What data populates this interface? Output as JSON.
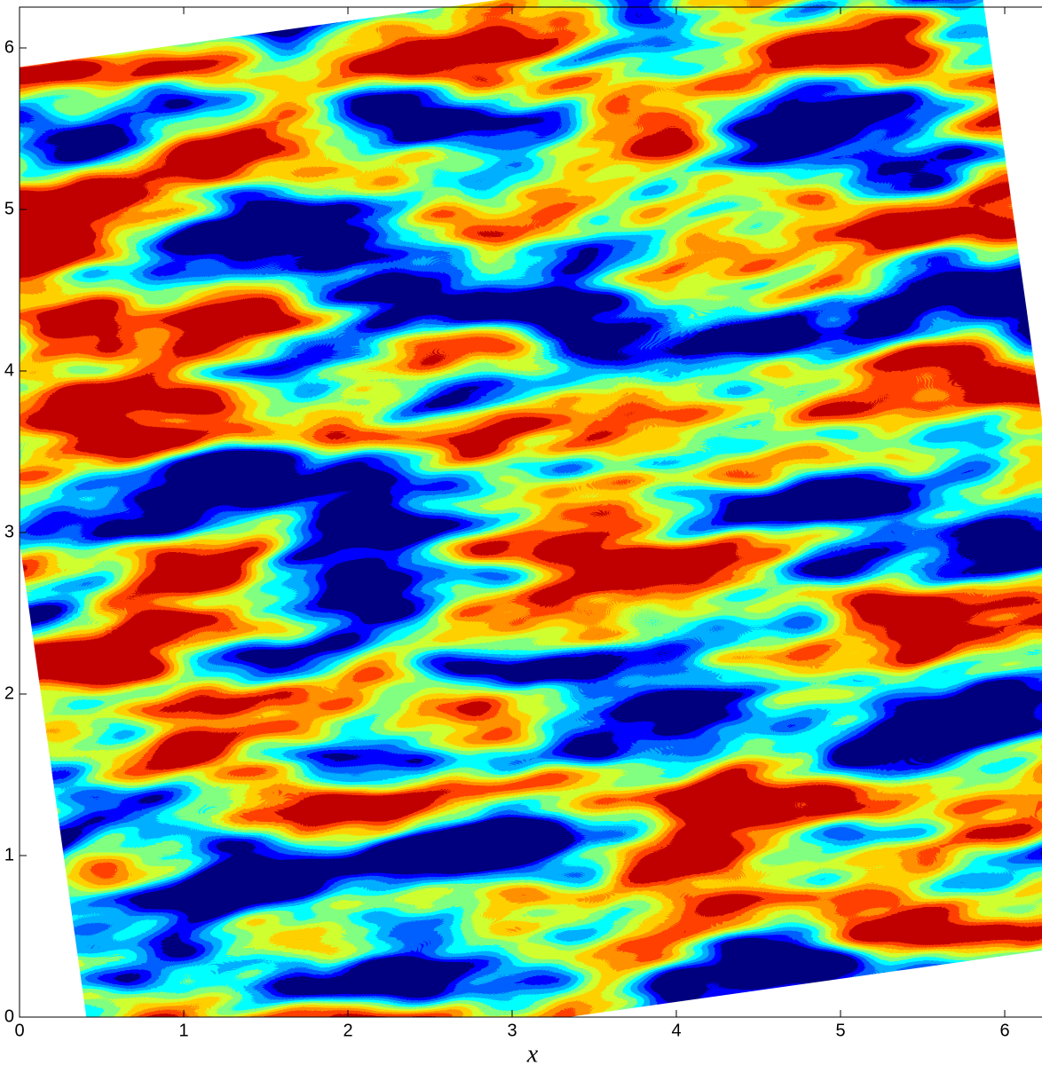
{
  "chart_data": {
    "type": "contour",
    "xlabel": "x",
    "xlim": [
      0,
      6.283185307
    ],
    "ylim": [
      0,
      6.283185307
    ],
    "xticks": [
      0,
      1,
      2,
      3,
      4,
      5,
      6
    ],
    "yticks": [
      0,
      1,
      2,
      3,
      4,
      5,
      6
    ],
    "colormap": [
      "#00007f",
      "#0000ff",
      "#0060ff",
      "#00b0ff",
      "#00ffff",
      "#80ff80",
      "#d0ff30",
      "#ffd000",
      "#ff9000",
      "#ff4000",
      "#c00000"
    ]
  }
}
